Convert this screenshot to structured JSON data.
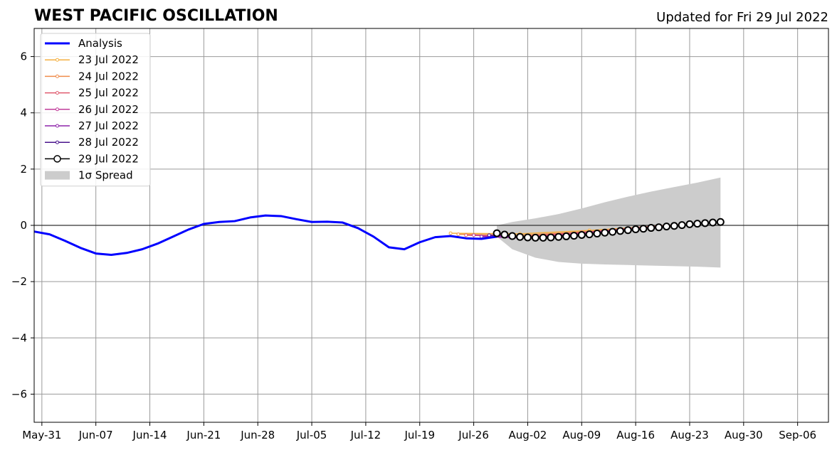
{
  "chart_data": {
    "type": "line",
    "title": "WEST PACIFIC OSCILLATION",
    "subtitle": "Updated for Fri 29 Jul 2022",
    "xlabel": "",
    "ylabel": "",
    "xlim": [
      "2022-05-30",
      "2022-09-10"
    ],
    "ylim": [
      -7,
      7
    ],
    "grid": true,
    "legend_position": "upper-left",
    "x_ticks": [
      "2022-05-31",
      "2022-06-07",
      "2022-06-14",
      "2022-06-21",
      "2022-06-28",
      "2022-07-05",
      "2022-07-12",
      "2022-07-19",
      "2022-07-26",
      "2022-08-02",
      "2022-08-09",
      "2022-08-16",
      "2022-08-23",
      "2022-08-30",
      "2022-09-06"
    ],
    "x_tick_labels": [
      "May-31",
      "Jun-07",
      "Jun-14",
      "Jun-21",
      "Jun-28",
      "Jul-05",
      "Jul-12",
      "Jul-19",
      "Jul-26",
      "Aug-02",
      "Aug-09",
      "Aug-16",
      "Aug-23",
      "Aug-30",
      "Sep-06"
    ],
    "y_ticks": [
      -6,
      -4,
      -2,
      0,
      2,
      4,
      6
    ],
    "y_tick_labels": [
      "−6",
      "−4",
      "−2",
      "0",
      "2",
      "4",
      "6"
    ],
    "series": [
      {
        "name": "Analysis",
        "kind": "analysis",
        "color": "#0000ff",
        "x": [
          "2022-05-30",
          "2022-06-01",
          "2022-06-03",
          "2022-06-05",
          "2022-06-07",
          "2022-06-09",
          "2022-06-11",
          "2022-06-13",
          "2022-06-15",
          "2022-06-17",
          "2022-06-19",
          "2022-06-21",
          "2022-06-23",
          "2022-06-25",
          "2022-06-27",
          "2022-06-29",
          "2022-07-01",
          "2022-07-03",
          "2022-07-05",
          "2022-07-07",
          "2022-07-09",
          "2022-07-11",
          "2022-07-13",
          "2022-07-15",
          "2022-07-17",
          "2022-07-19",
          "2022-07-21",
          "2022-07-23",
          "2022-07-25",
          "2022-07-27",
          "2022-07-29"
        ],
        "values": [
          -0.22,
          -0.32,
          -0.55,
          -0.8,
          -1.0,
          -1.05,
          -0.98,
          -0.85,
          -0.65,
          -0.4,
          -0.15,
          0.05,
          0.12,
          0.15,
          0.28,
          0.35,
          0.33,
          0.22,
          0.12,
          0.13,
          0.1,
          -0.1,
          -0.4,
          -0.78,
          -0.85,
          -0.6,
          -0.42,
          -0.38,
          -0.46,
          -0.48,
          -0.4
        ]
      },
      {
        "name": "23 Jul 2022",
        "kind": "forecast",
        "color": "#f5b041",
        "x": [
          "2022-07-23",
          "2022-08-01",
          "2022-08-10",
          "2022-08-19",
          "2022-08-23"
        ],
        "values": [
          -0.28,
          -0.3,
          -0.18,
          -0.02,
          0.05
        ]
      },
      {
        "name": "24 Jul 2022",
        "kind": "forecast",
        "color": "#f08c4b",
        "x": [
          "2022-07-24",
          "2022-08-01",
          "2022-08-10",
          "2022-08-18",
          "2022-08-24"
        ],
        "values": [
          -0.32,
          -0.35,
          -0.22,
          -0.05,
          0.05
        ]
      },
      {
        "name": "25 Jul 2022",
        "kind": "forecast",
        "color": "#e05a6e",
        "x": [
          "2022-07-25",
          "2022-08-01",
          "2022-08-09",
          "2022-08-17",
          "2022-08-24"
        ],
        "values": [
          -0.35,
          -0.4,
          -0.25,
          -0.06,
          0.06
        ]
      },
      {
        "name": "26 Jul 2022",
        "kind": "forecast",
        "color": "#c03c9a",
        "x": [
          "2022-07-26",
          "2022-08-01",
          "2022-08-08",
          "2022-08-16",
          "2022-08-23"
        ],
        "values": [
          -0.35,
          -0.45,
          -0.3,
          -0.1,
          0.03
        ]
      },
      {
        "name": "27 Jul 2022",
        "kind": "forecast",
        "color": "#8e24aa",
        "x": [
          "2022-07-27",
          "2022-08-02",
          "2022-08-09",
          "2022-08-16",
          "2022-08-24"
        ],
        "values": [
          -0.4,
          -0.45,
          -0.32,
          -0.12,
          0.05
        ]
      },
      {
        "name": "28 Jul 2022",
        "kind": "forecast",
        "color": "#4a148c",
        "x": [
          "2022-07-28",
          "2022-08-03",
          "2022-08-09",
          "2022-08-16",
          "2022-08-25"
        ],
        "values": [
          -0.35,
          -0.42,
          -0.35,
          -0.15,
          0.08
        ]
      },
      {
        "name": "29 Jul 2022",
        "kind": "current",
        "color": "#000000",
        "x": [
          "2022-07-29",
          "2022-07-30",
          "2022-07-31",
          "2022-08-01",
          "2022-08-02",
          "2022-08-03",
          "2022-08-04",
          "2022-08-05",
          "2022-08-06",
          "2022-08-07",
          "2022-08-08",
          "2022-08-09",
          "2022-08-10",
          "2022-08-11",
          "2022-08-12",
          "2022-08-13",
          "2022-08-14",
          "2022-08-15",
          "2022-08-16",
          "2022-08-17",
          "2022-08-18",
          "2022-08-19",
          "2022-08-20",
          "2022-08-21",
          "2022-08-22",
          "2022-08-23",
          "2022-08-24",
          "2022-08-25",
          "2022-08-26",
          "2022-08-27"
        ],
        "values": [
          -0.28,
          -0.33,
          -0.38,
          -0.41,
          -0.43,
          -0.44,
          -0.44,
          -0.43,
          -0.41,
          -0.39,
          -0.37,
          -0.34,
          -0.32,
          -0.29,
          -0.26,
          -0.23,
          -0.2,
          -0.17,
          -0.14,
          -0.12,
          -0.09,
          -0.07,
          -0.04,
          -0.02,
          0.01,
          0.04,
          0.06,
          0.08,
          0.1,
          0.12
        ]
      }
    ],
    "spread": {
      "name": "1σ Spread",
      "color": "#cccccc",
      "x": [
        "2022-07-29",
        "2022-07-31",
        "2022-08-03",
        "2022-08-06",
        "2022-08-09",
        "2022-08-12",
        "2022-08-15",
        "2022-08-18",
        "2022-08-21",
        "2022-08-24",
        "2022-08-27"
      ],
      "upper": [
        0.0,
        0.12,
        0.25,
        0.4,
        0.6,
        0.82,
        1.02,
        1.2,
        1.36,
        1.52,
        1.7
      ],
      "lower": [
        -0.4,
        -0.85,
        -1.15,
        -1.3,
        -1.36,
        -1.39,
        -1.41,
        -1.43,
        -1.45,
        -1.47,
        -1.5
      ]
    }
  }
}
